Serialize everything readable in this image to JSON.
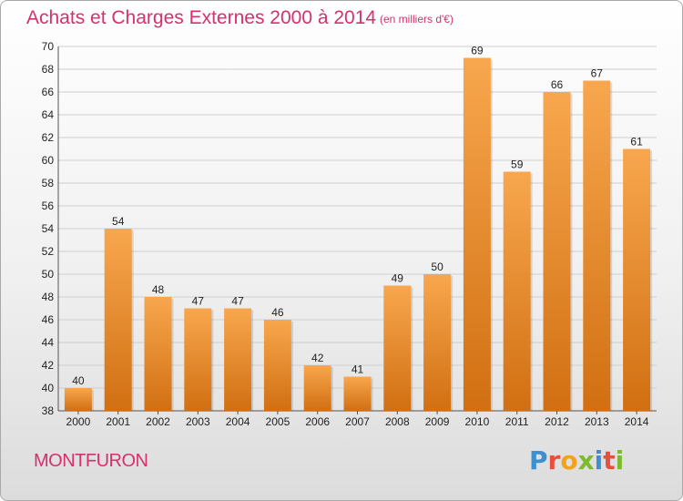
{
  "header": {
    "title": "Achats et Charges Externes 2000 à 2014",
    "subtitle": "(en milliers d'€)"
  },
  "footer": {
    "place": "MONTFURON",
    "logo_letters": [
      "P",
      "r",
      "o",
      "x",
      "i",
      "t",
      "i"
    ],
    "logo_colors": [
      "#3d8fd1",
      "#e94e3c",
      "#f3a31b",
      "#7dbb2d",
      "#3d8fd1",
      "#e94e3c",
      "#7dbb2d"
    ]
  },
  "colors": {
    "bar_light": "#f8a74e",
    "bar_dark": "#d16f12",
    "grid": "#cfcfcf",
    "text": "#222222",
    "accent": "#d6306e"
  },
  "chart_data": {
    "type": "bar",
    "categories": [
      "2000",
      "2001",
      "2002",
      "2003",
      "2004",
      "2005",
      "2006",
      "2007",
      "2008",
      "2009",
      "2010",
      "2011",
      "2012",
      "2013",
      "2014"
    ],
    "values": [
      40,
      54,
      48,
      47,
      47,
      46,
      42,
      41,
      49,
      50,
      69,
      59,
      66,
      67,
      61
    ],
    "data_labels": [
      "40",
      "54",
      "48",
      "47",
      "47",
      "46",
      "42",
      "41",
      "49",
      "50",
      "69",
      "59",
      "66",
      "67",
      "61"
    ],
    "title": "Achats et Charges Externes 2000 à 2014",
    "subtitle": "(en milliers d'€)",
    "ylim": [
      38,
      70
    ],
    "yticks": [
      38,
      40,
      42,
      44,
      46,
      48,
      50,
      52,
      54,
      56,
      58,
      60,
      62,
      64,
      66,
      68,
      70
    ],
    "grid": true
  }
}
